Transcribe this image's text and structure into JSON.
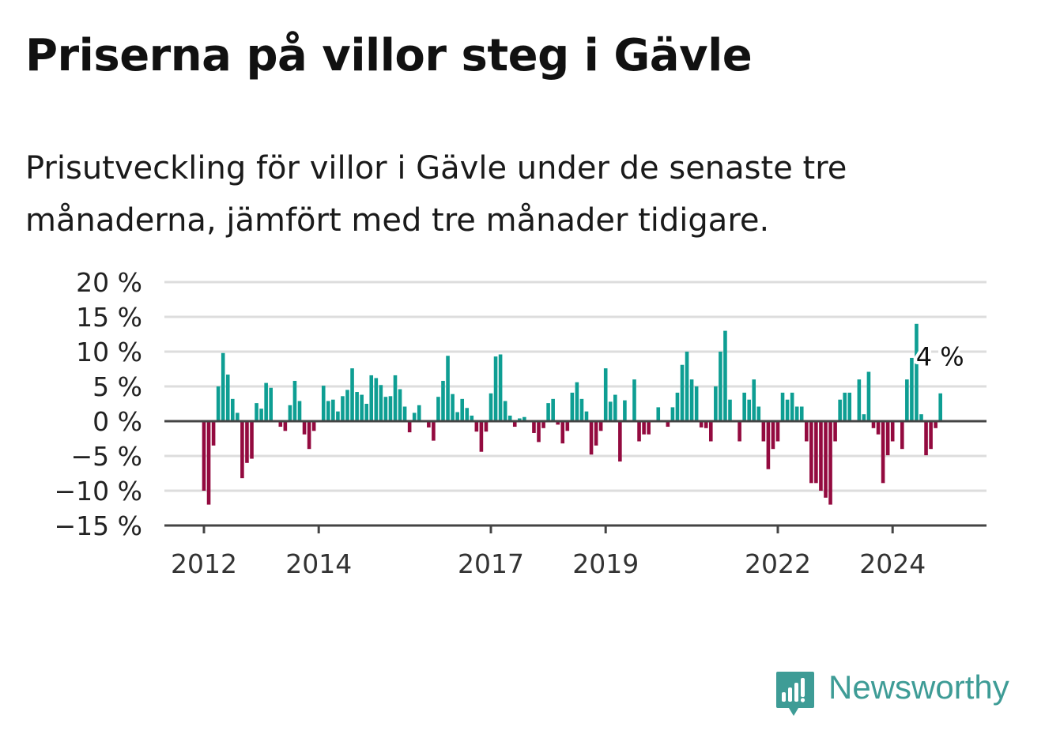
{
  "title": "Priserna på villor steg i Gävle",
  "subtitle": "Prisutveckling för villor i Gävle under de senaste tre månaderna, jämfört med tre månader tidigare.",
  "brand": {
    "name": "Newsworthy",
    "icon": "newsworthy-logo-icon",
    "color": "#3e9c96"
  },
  "colors": {
    "positive": "#0e9e93",
    "negative": "#930a3f",
    "grid": "#dddddd",
    "axis": "#444444"
  },
  "chart_data": {
    "type": "bar",
    "x_start_month": "2012-01",
    "interval": "monthly",
    "ylim": [
      -15,
      20
    ],
    "yticks": [
      -15,
      -10,
      -5,
      0,
      5,
      10,
      15,
      20
    ],
    "ytick_labels": [
      "−15 %",
      "−10 %",
      "−5 %",
      "0 %",
      "5 %",
      "10 %",
      "15 %",
      "20 %"
    ],
    "xticks": [
      {
        "label": "2012",
        "month_index": 0
      },
      {
        "label": "2014",
        "month_index": 24
      },
      {
        "label": "2017",
        "month_index": 60
      },
      {
        "label": "2019",
        "month_index": 84
      },
      {
        "label": "2022",
        "month_index": 120
      },
      {
        "label": "2024",
        "month_index": 144
      }
    ],
    "end_label": "4 %",
    "grid": true,
    "values": [
      -10,
      -12,
      -3.5,
      5,
      9.8,
      6.7,
      3.2,
      1.2,
      -8.2,
      -6,
      -5.4,
      2.6,
      1.8,
      5.5,
      4.8,
      0,
      -0.8,
      -1.4,
      2.3,
      5.8,
      2.9,
      -1.9,
      -4,
      -1.4,
      0,
      5.1,
      2.9,
      3.1,
      1.4,
      3.6,
      4.5,
      7.6,
      4.2,
      3.8,
      2.5,
      6.6,
      6.2,
      5.2,
      3.5,
      3.6,
      6.6,
      4.6,
      2.1,
      -1.6,
      1.2,
      2.3,
      0,
      -0.9,
      -2.8,
      3.5,
      5.8,
      9.4,
      3.9,
      1.3,
      3.2,
      1.9,
      0.8,
      -1.5,
      -4.4,
      -1.5,
      4,
      9.3,
      9.6,
      2.9,
      0.8,
      -0.8,
      0.4,
      0.6,
      0,
      -1.7,
      -3,
      -1,
      2.6,
      3.2,
      -0.5,
      -3.2,
      -1.4,
      4.1,
      5.6,
      3.2,
      1.4,
      -4.8,
      -3.5,
      -1.4,
      7.6,
      2.8,
      3.8,
      -5.8,
      3,
      0,
      6,
      -2.9,
      -1.9,
      -1.9,
      0,
      2,
      0,
      -0.8,
      2,
      4.1,
      8.1,
      10,
      6,
      5,
      -0.9,
      -1,
      -2.9,
      5,
      10,
      13,
      3.1,
      0,
      -2.9,
      4.1,
      3.1,
      6,
      2.1,
      -2.9,
      -6.9,
      -4,
      -2.9,
      4.1,
      3.1,
      4.1,
      2.1,
      2.1,
      -2.9,
      -8.9,
      -8.9,
      -10,
      -11,
      -12,
      -2.9,
      3.1,
      4.1,
      4.1,
      0,
      6,
      1,
      7.1,
      -1,
      -1.9,
      -8.9,
      -4.9,
      -2.9,
      0,
      -4,
      6,
      9.1,
      14,
      1,
      -4.9,
      -4,
      -1,
      4
    ]
  }
}
